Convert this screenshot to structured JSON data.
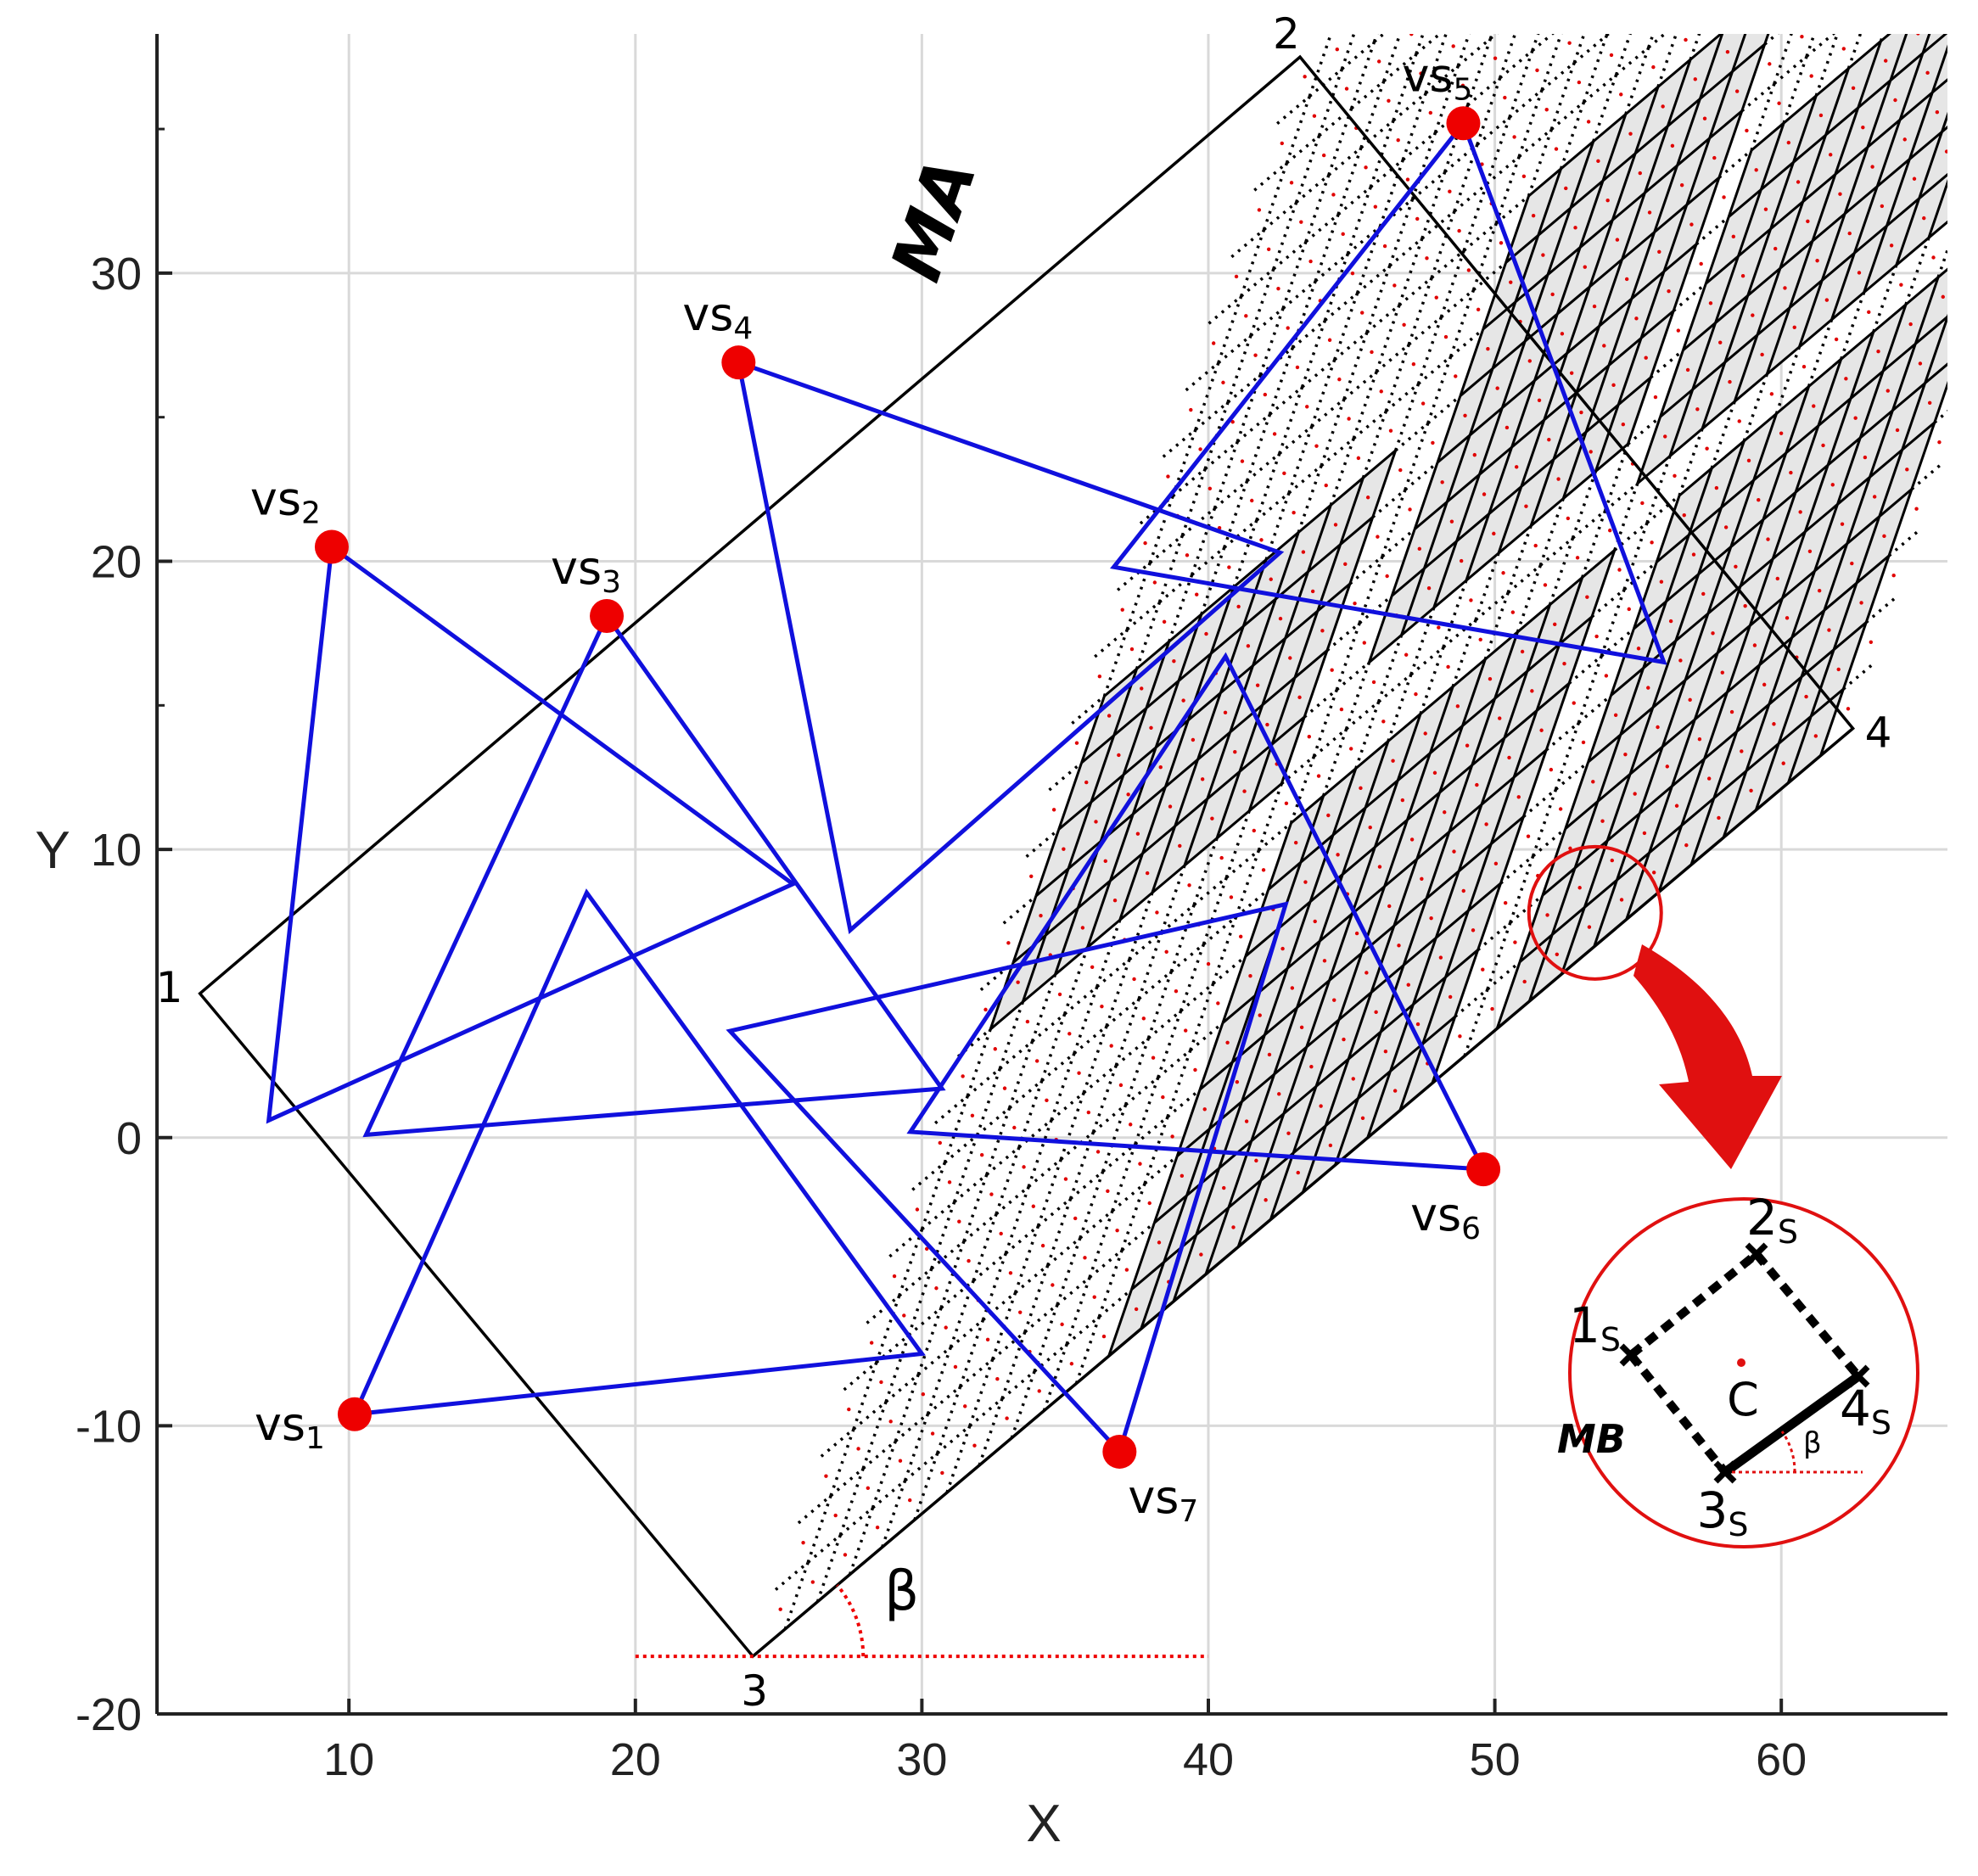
{
  "axes": {
    "xlabel": "X",
    "ylabel": "Y",
    "xlim": [
      3.3,
      65.8
    ],
    "ylim": [
      -20,
      38.3
    ],
    "xticks": [
      10,
      20,
      30,
      40,
      50,
      60
    ],
    "yticks": [
      30,
      20,
      10,
      0,
      -10,
      -20
    ],
    "xtick_labels": [
      "10",
      "20",
      "30",
      "40",
      "50",
      "60"
    ],
    "ytick_labels": [
      "30",
      "20",
      "10",
      "0",
      "-10",
      "-20"
    ],
    "grid": true
  },
  "rectangle_MA": {
    "label": "MA",
    "corners": [
      {
        "id": "1",
        "x": 4.8,
        "y": 5.0
      },
      {
        "id": "2",
        "x": 43.2,
        "y": 37.5
      },
      {
        "id": "4",
        "x": 62.5,
        "y": 14.2
      },
      {
        "id": "3",
        "x": 24.1,
        "y": -18.0
      }
    ],
    "rows": 24,
    "cols": 34,
    "shaded_blocks": [
      {
        "rows": [
          9,
          14
        ],
        "cols": [
          1,
          10
        ]
      },
      {
        "rows": [
          10,
          17
        ],
        "cols": [
          12,
          20
        ]
      },
      {
        "rows": [
          9,
          14
        ],
        "cols": [
          21,
          33
        ]
      },
      {
        "rows": [
          0,
          8
        ],
        "cols": [
          11,
          21
        ]
      },
      {
        "rows": [
          0,
          8
        ],
        "cols": [
          23,
          33
        ]
      }
    ]
  },
  "sensors": [
    {
      "label": "vs",
      "sub": "1",
      "x": 10.2,
      "y": -9.6,
      "triangle": [
        [
          10.2,
          -9.6
        ],
        [
          18.3,
          8.5
        ],
        [
          30.0,
          -7.5
        ]
      ]
    },
    {
      "label": "vs",
      "sub": "2",
      "x": 9.4,
      "y": 20.5,
      "triangle": [
        [
          9.4,
          20.5
        ],
        [
          7.2,
          0.6
        ],
        [
          25.5,
          8.8
        ]
      ]
    },
    {
      "label": "vs",
      "sub": "3",
      "x": 19.0,
      "y": 18.1,
      "triangle": [
        [
          19.0,
          18.1
        ],
        [
          10.6,
          0.1
        ],
        [
          30.7,
          1.7
        ]
      ]
    },
    {
      "label": "vs",
      "sub": "4",
      "x": 23.6,
      "y": 26.9,
      "triangle": [
        [
          23.6,
          26.9
        ],
        [
          27.5,
          7.2
        ],
        [
          42.5,
          20.3
        ]
      ]
    },
    {
      "label": "vs",
      "sub": "5",
      "x": 48.9,
      "y": 35.2,
      "triangle": [
        [
          48.9,
          35.2
        ],
        [
          36.7,
          19.8
        ],
        [
          55.9,
          16.5
        ]
      ]
    },
    {
      "label": "vs",
      "sub": "6",
      "x": 49.6,
      "y": -1.1,
      "triangle": [
        [
          49.6,
          -1.1
        ],
        [
          40.6,
          16.7
        ],
        [
          29.6,
          0.2
        ]
      ]
    },
    {
      "label": "vs",
      "sub": "7",
      "x": 36.9,
      "y": -10.9,
      "triangle": [
        [
          36.9,
          -10.9
        ],
        [
          42.7,
          8.1
        ],
        [
          23.3,
          3.7
        ]
      ]
    }
  ],
  "angle": {
    "label": "β",
    "ref_from_x": 20.0,
    "ref_to_x": 40.0,
    "ref_y": -18.0
  },
  "zoom": {
    "center_x": 53.5,
    "center_y": 7.8,
    "inset_labels": {
      "c1": "1",
      "c2": "2",
      "c3": "3",
      "c4": "4",
      "sub": "S",
      "center": "C",
      "block": "MB",
      "angle": "β"
    }
  },
  "colors": {
    "sensor": "#ee0000",
    "triangle": "#1010dd",
    "grid_line": "#000000",
    "shade": "#e6e6e6",
    "cell_dot": "#e00000",
    "axis_grid": "#d9d9d9",
    "highlight": "#e01010"
  }
}
